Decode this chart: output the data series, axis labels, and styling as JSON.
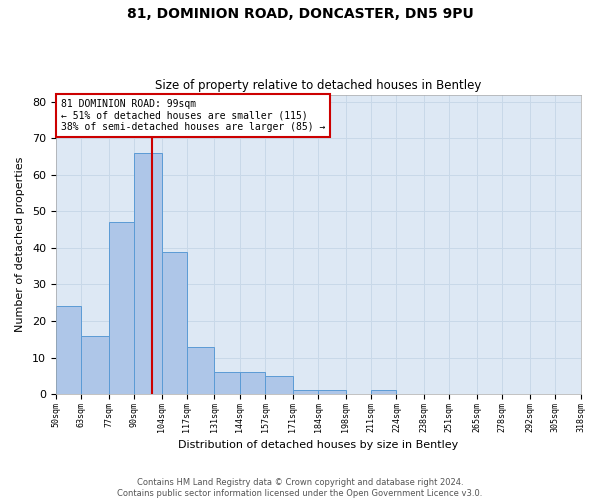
{
  "title_line1": "81, DOMINION ROAD, DONCASTER, DN5 9PU",
  "title_line2": "Size of property relative to detached houses in Bentley",
  "xlabel": "Distribution of detached houses by size in Bentley",
  "ylabel": "Number of detached properties",
  "bar_edges": [
    50,
    63,
    77,
    90,
    104,
    117,
    131,
    144,
    157,
    171,
    184,
    198,
    211,
    224,
    238,
    251,
    265,
    278,
    292,
    305,
    318
  ],
  "bar_heights": [
    24,
    16,
    47,
    66,
    39,
    13,
    6,
    6,
    5,
    1,
    1,
    0,
    1,
    0,
    0,
    0,
    0,
    0,
    0,
    0
  ],
  "bar_color": "#aec6e8",
  "bar_edge_color": "#5b9bd5",
  "ylim": [
    0,
    82
  ],
  "yticks": [
    0,
    10,
    20,
    30,
    40,
    50,
    60,
    70,
    80
  ],
  "property_line_x": 99,
  "annotation_line1": "81 DOMINION ROAD: 99sqm",
  "annotation_line2": "← 51% of detached houses are smaller (115)",
  "annotation_line3": "38% of semi-detached houses are larger (85) →",
  "annotation_box_color": "#cc0000",
  "grid_color": "#c8d8e8",
  "bg_color": "#dde8f4",
  "footer_text": "Contains HM Land Registry data © Crown copyright and database right 2024.\nContains public sector information licensed under the Open Government Licence v3.0."
}
